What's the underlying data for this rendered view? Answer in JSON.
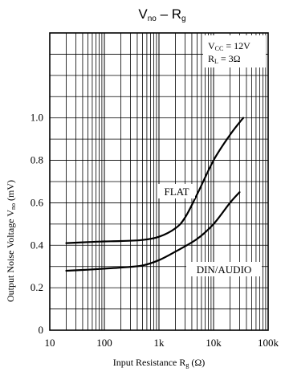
{
  "chart_data": {
    "type": "line",
    "title": "V",
    "title_sub": "no",
    "title_dash": " – R",
    "title_sub2": "g",
    "xlabel_main": "Input Resistance R",
    "xlabel_sub": "g",
    "xlabel_unit": " (Ω)",
    "ylabel_main": "Output Noise Voltage V",
    "ylabel_sub": "no",
    "ylabel_unit": " (mV)",
    "x_scale": "log",
    "xlim": [
      10,
      100000
    ],
    "ylim": [
      0,
      1.4
    ],
    "grid": true,
    "x_ticks": [
      {
        "value": 10,
        "label": "10"
      },
      {
        "value": 100,
        "label": "100"
      },
      {
        "value": 1000,
        "label": "1k"
      },
      {
        "value": 10000,
        "label": "10k"
      },
      {
        "value": 100000,
        "label": "100k"
      }
    ],
    "y_ticks": [
      {
        "value": 0,
        "label": "0"
      },
      {
        "value": 0.2,
        "label": "0.2"
      },
      {
        "value": 0.4,
        "label": "0.4"
      },
      {
        "value": 0.6,
        "label": "0.6"
      },
      {
        "value": 0.8,
        "label": "0.8"
      },
      {
        "value": 1.0,
        "label": "1.0"
      }
    ],
    "conditions": [
      {
        "main": "V",
        "sub": "CC",
        "rest": " = 12V"
      },
      {
        "main": "R",
        "sub": "L",
        "rest": " = 3Ω"
      }
    ],
    "series": [
      {
        "name": "FLAT",
        "x": [
          20,
          50,
          100,
          200,
          500,
          1000,
          2000,
          3000,
          5000,
          10000,
          20000,
          35000
        ],
        "y": [
          0.41,
          0.415,
          0.418,
          0.42,
          0.425,
          0.44,
          0.48,
          0.53,
          0.64,
          0.8,
          0.92,
          1.0
        ]
      },
      {
        "name": "DIN/AUDIO",
        "x": [
          20,
          50,
          100,
          200,
          500,
          1000,
          2000,
          5000,
          10000,
          20000,
          30000
        ],
        "y": [
          0.28,
          0.285,
          0.29,
          0.295,
          0.305,
          0.33,
          0.37,
          0.43,
          0.5,
          0.6,
          0.65
        ]
      }
    ]
  }
}
